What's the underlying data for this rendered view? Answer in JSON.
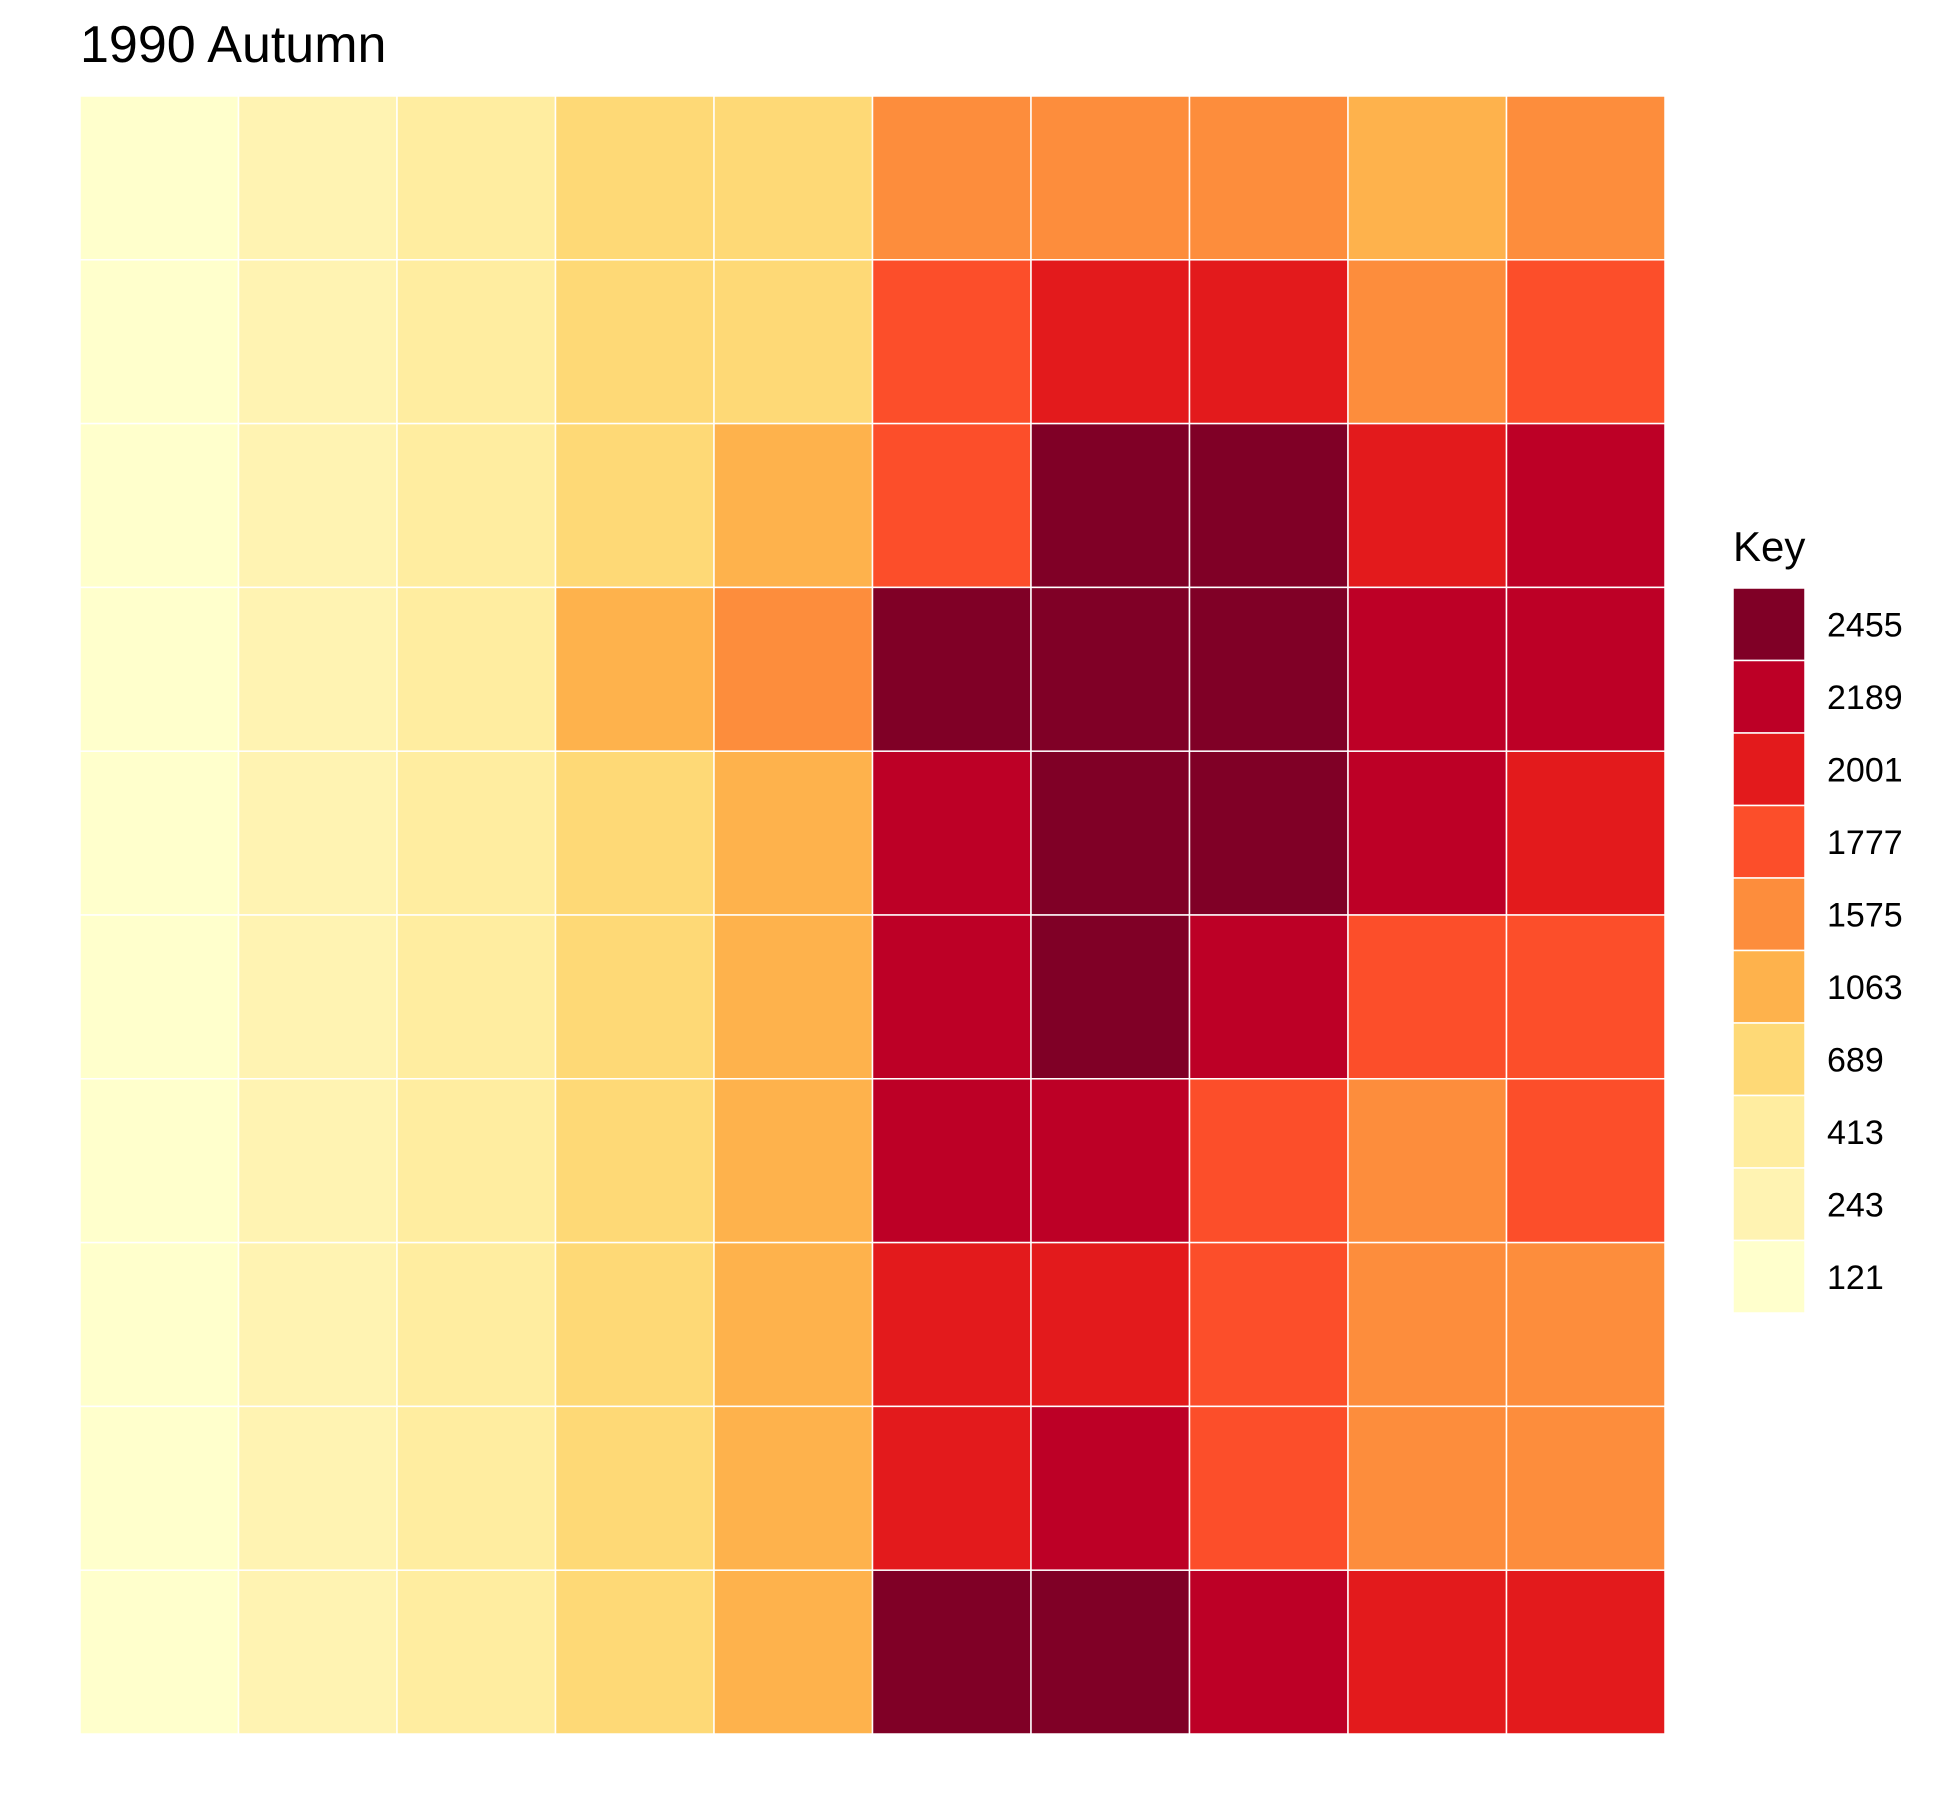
{
  "chart_data": {
    "type": "heatmap",
    "title": "1990 Autumn",
    "xlabel": "",
    "ylabel": "",
    "grid": false,
    "legend": {
      "title": "Key",
      "placement": "right",
      "levels": [
        {
          "label": "2455",
          "color": "#800026"
        },
        {
          "label": "2189",
          "color": "#BD0026"
        },
        {
          "label": "2001",
          "color": "#E31A1C"
        },
        {
          "label": "1777",
          "color": "#FC4E2A"
        },
        {
          "label": "1575",
          "color": "#FD8D3C"
        },
        {
          "label": "1063",
          "color": "#FEB24C"
        },
        {
          "label": "689",
          "color": "#FED976"
        },
        {
          "label": "413",
          "color": "#FFEDA0"
        },
        {
          "label": "243",
          "color": "#FFF3B2"
        },
        {
          "label": "121",
          "color": "#FFFFCC"
        }
      ]
    },
    "cells": [
      [
        "121",
        "243",
        "413",
        "689",
        "689",
        "1575",
        "1575",
        "1575",
        "1063",
        "1575"
      ],
      [
        "121",
        "243",
        "413",
        "689",
        "689",
        "1777",
        "2001",
        "2001",
        "1575",
        "1777"
      ],
      [
        "121",
        "243",
        "413",
        "689",
        "1063",
        "1777",
        "2455",
        "2455",
        "2001",
        "2189"
      ],
      [
        "121",
        "243",
        "413",
        "1063",
        "1575",
        "2455",
        "2455",
        "2455",
        "2189",
        "2189"
      ],
      [
        "121",
        "243",
        "413",
        "689",
        "1063",
        "2189",
        "2455",
        "2455",
        "2189",
        "2001"
      ],
      [
        "121",
        "243",
        "413",
        "689",
        "1063",
        "2189",
        "2455",
        "2189",
        "1777",
        "1777"
      ],
      [
        "121",
        "243",
        "413",
        "689",
        "1063",
        "2189",
        "2189",
        "1777",
        "1575",
        "1777"
      ],
      [
        "121",
        "243",
        "413",
        "689",
        "1063",
        "2001",
        "2001",
        "1777",
        "1575",
        "1575"
      ],
      [
        "121",
        "243",
        "413",
        "689",
        "1063",
        "2001",
        "2189",
        "1777",
        "1575",
        "1575"
      ],
      [
        "121",
        "243",
        "413",
        "689",
        "1063",
        "2455",
        "2455",
        "2189",
        "2001",
        "2001"
      ]
    ]
  }
}
